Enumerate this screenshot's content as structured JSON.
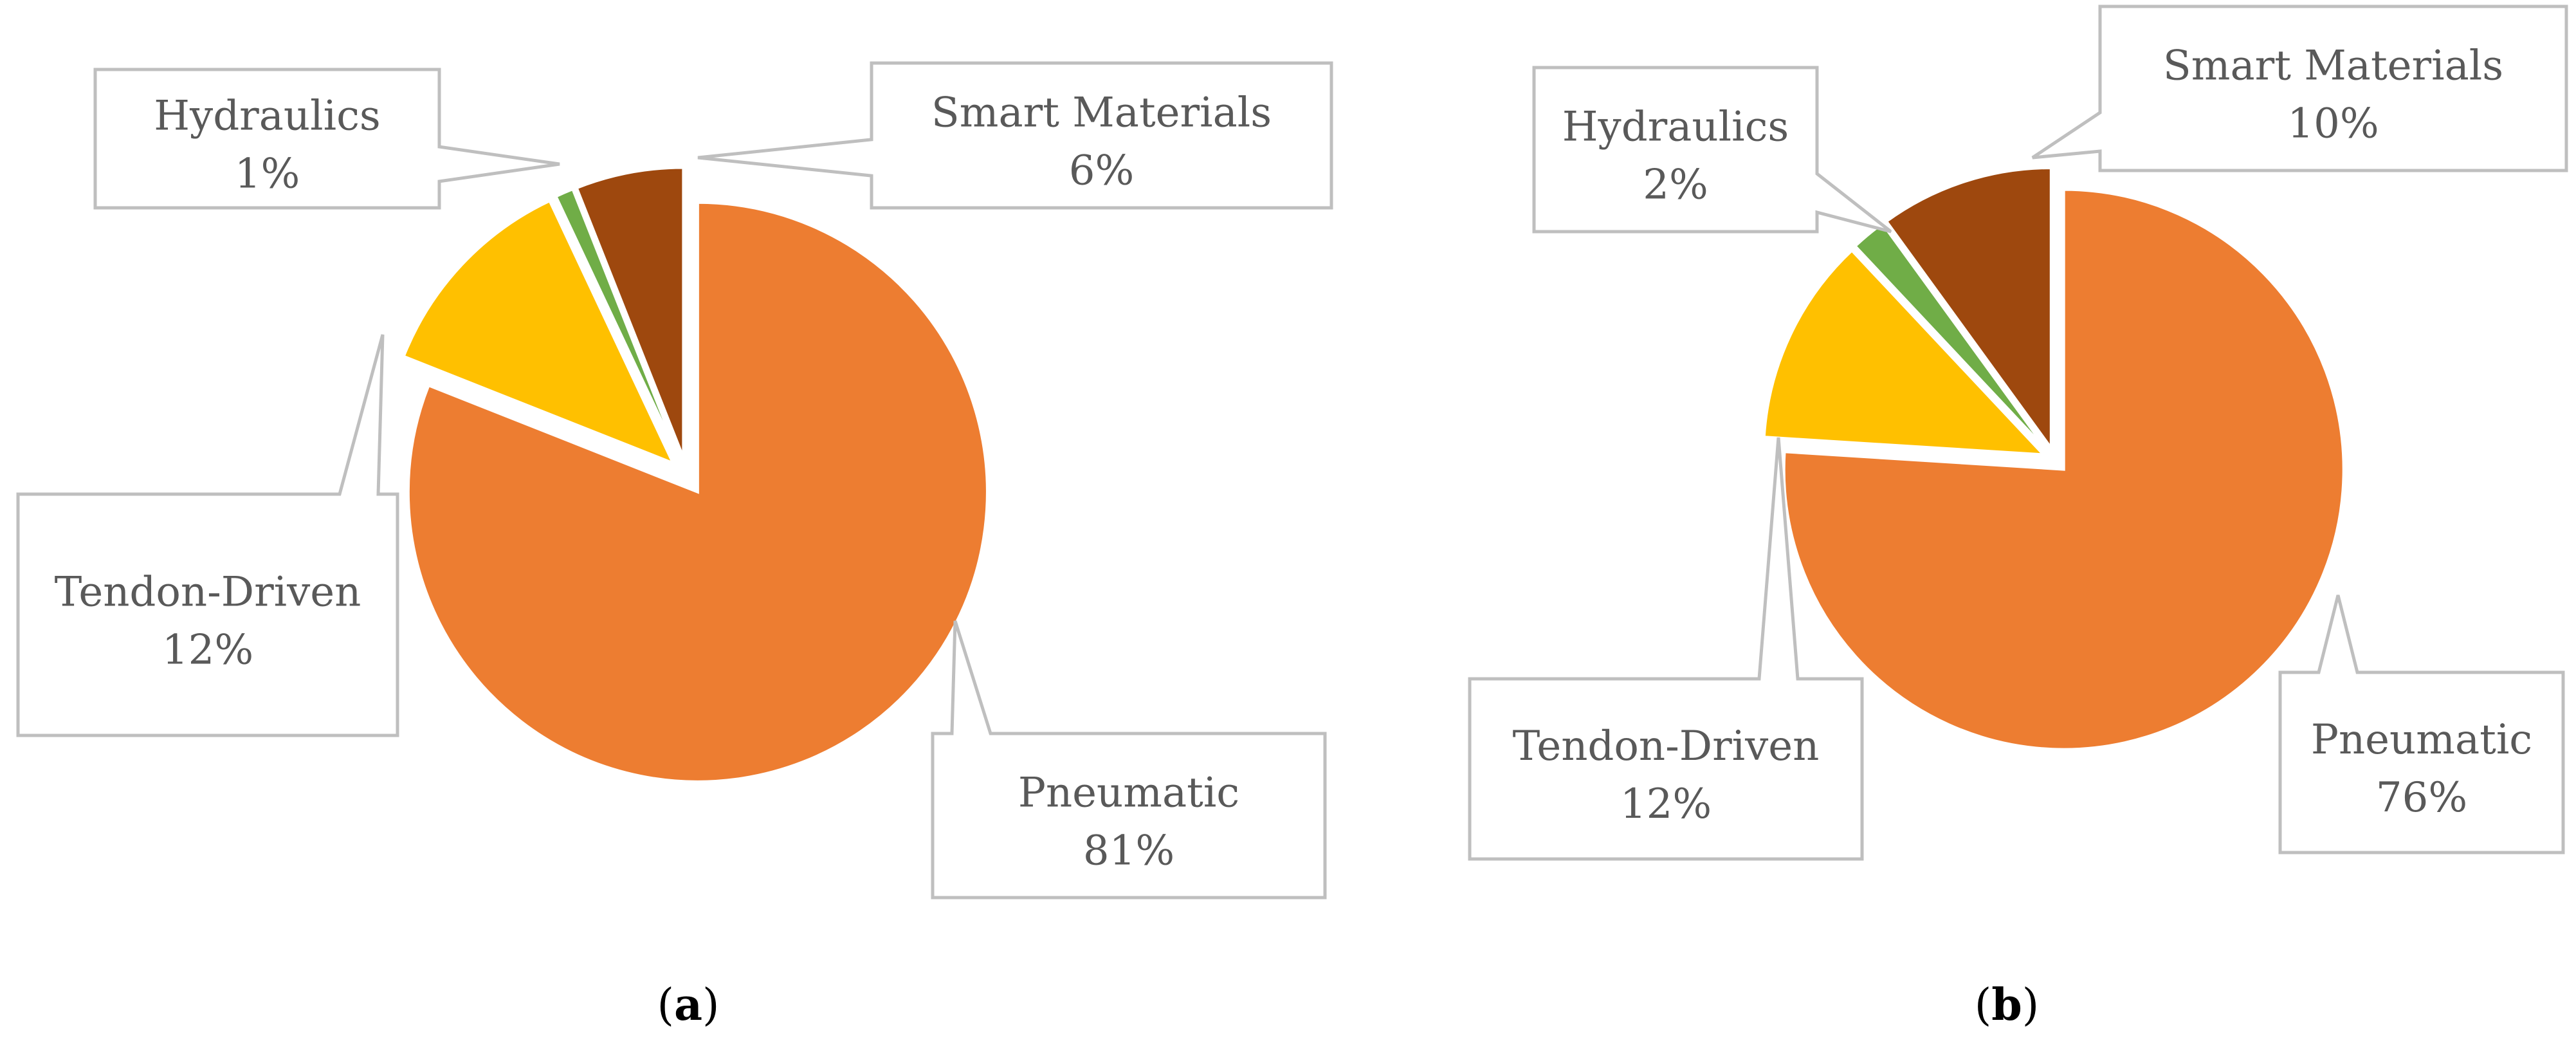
{
  "chart_data": [
    {
      "type": "pie",
      "panel_label": "a",
      "title": "",
      "legend": "none",
      "data_labels": "callouts",
      "start_angle_deg": 0,
      "direction": "clockwise",
      "exploded": true,
      "slices": [
        {
          "name": "Pneumatic",
          "value": 81,
          "label": "81%",
          "color": "#ED7D31"
        },
        {
          "name": "Tendon-Driven",
          "value": 12,
          "label": "12%",
          "color": "#FFC000"
        },
        {
          "name": "Hydraulics",
          "value": 1,
          "label": "1%",
          "color": "#70AD47"
        },
        {
          "name": "Smart Materials",
          "value": 6,
          "label": "6%",
          "color": "#9E480E"
        }
      ]
    },
    {
      "type": "pie",
      "panel_label": "b",
      "title": "",
      "legend": "none",
      "data_labels": "callouts",
      "start_angle_deg": 0,
      "direction": "clockwise",
      "exploded": true,
      "slices": [
        {
          "name": "Pneumatic",
          "value": 76,
          "label": "76%",
          "color": "#ED7D31"
        },
        {
          "name": "Tendon-Driven",
          "value": 12,
          "label": "12%",
          "color": "#FFC000"
        },
        {
          "name": "Hydraulics",
          "value": 2,
          "label": "2%",
          "color": "#70AD47"
        },
        {
          "name": "Smart Materials",
          "value": 10,
          "label": "10%",
          "color": "#9E480E"
        }
      ]
    }
  ],
  "style": {
    "callout_border": "#BFBFBF",
    "label_text": "#595959",
    "caption_text": "#000000"
  }
}
